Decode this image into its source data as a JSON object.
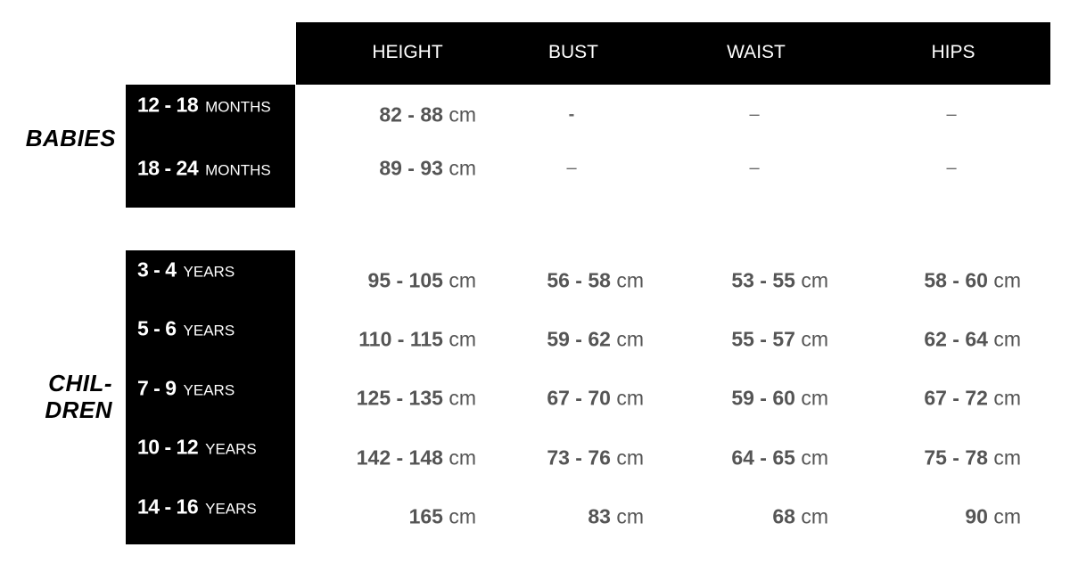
{
  "columns": [
    "HEIGHT",
    "BUST",
    "WAIST",
    "HIPS"
  ],
  "groups": [
    {
      "name": "BABIES",
      "rows": [
        {
          "range": "12 - 18",
          "unit": "MONTHS",
          "values": [
            "82 - 88",
            "-",
            "–",
            "–"
          ]
        },
        {
          "range": "18 - 24",
          "unit": "MONTHS",
          "values": [
            "89 - 93",
            "–",
            "–",
            "–"
          ]
        }
      ]
    },
    {
      "name_line1": "CHIL-",
      "name_line2": "DREN",
      "rows": [
        {
          "range": "3 - 4",
          "unit": "YEARS",
          "values": [
            "95 - 105",
            "56 - 58",
            "53 - 55",
            "58 - 60"
          ]
        },
        {
          "range": "5 - 6",
          "unit": "YEARS",
          "values": [
            "110 - 115",
            "59 - 62",
            "55 - 57",
            "62 - 64"
          ]
        },
        {
          "range": "7 - 9",
          "unit": "YEARS",
          "values": [
            "125 - 135",
            "67 - 70",
            "59 - 60",
            "67 - 72"
          ]
        },
        {
          "range": "10 - 12",
          "unit": "YEARS",
          "values": [
            "142 - 148",
            "73 - 76",
            "64 - 65",
            "75 - 78"
          ]
        },
        {
          "range": "14 - 16",
          "unit": "YEARS",
          "values": [
            "165",
            "83",
            "68",
            "90"
          ]
        }
      ]
    }
  ],
  "unit": "cm"
}
